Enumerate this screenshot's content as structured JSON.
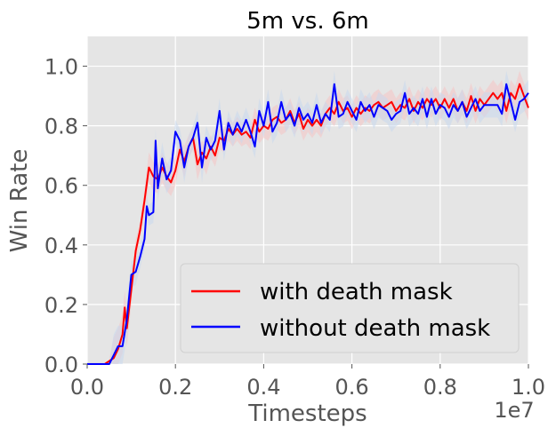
{
  "chart_data": {
    "type": "line",
    "title": "5m vs. 6m",
    "xlabel": "Timesteps",
    "ylabel": "Win Rate",
    "x_offset_label": "1e7",
    "xlim": [
      0.0,
      1.0
    ],
    "ylim": [
      0.0,
      1.1
    ],
    "xticks": [
      "0.0",
      "0.2",
      "0.4",
      "0.6",
      "0.8",
      "1.0"
    ],
    "yticks": [
      "0.0",
      "0.2",
      "0.4",
      "0.6",
      "0.8",
      "1.0"
    ],
    "grid": true,
    "legend_position": "lower-right",
    "series": [
      {
        "name": "with death mask",
        "color": "#ff0000",
        "band_color": "#f5c4c4",
        "points": [
          [
            0.0,
            0.0
          ],
          [
            0.02,
            0.0
          ],
          [
            0.04,
            0.0
          ],
          [
            0.05,
            0.01
          ],
          [
            0.06,
            0.02
          ],
          [
            0.07,
            0.05
          ],
          [
            0.08,
            0.1
          ],
          [
            0.085,
            0.19
          ],
          [
            0.09,
            0.12
          ],
          [
            0.1,
            0.25
          ],
          [
            0.11,
            0.38
          ],
          [
            0.12,
            0.45
          ],
          [
            0.13,
            0.55
          ],
          [
            0.14,
            0.66
          ],
          [
            0.15,
            0.63
          ],
          [
            0.16,
            0.62
          ],
          [
            0.17,
            0.66
          ],
          [
            0.18,
            0.63
          ],
          [
            0.19,
            0.61
          ],
          [
            0.2,
            0.65
          ],
          [
            0.21,
            0.72
          ],
          [
            0.22,
            0.68
          ],
          [
            0.23,
            0.73
          ],
          [
            0.24,
            0.76
          ],
          [
            0.25,
            0.67
          ],
          [
            0.26,
            0.71
          ],
          [
            0.27,
            0.69
          ],
          [
            0.28,
            0.73
          ],
          [
            0.29,
            0.7
          ],
          [
            0.3,
            0.76
          ],
          [
            0.31,
            0.75
          ],
          [
            0.32,
            0.79
          ],
          [
            0.33,
            0.77
          ],
          [
            0.34,
            0.79
          ],
          [
            0.35,
            0.77
          ],
          [
            0.36,
            0.78
          ],
          [
            0.37,
            0.76
          ],
          [
            0.38,
            0.82
          ],
          [
            0.39,
            0.78
          ],
          [
            0.4,
            0.8
          ],
          [
            0.41,
            0.79
          ],
          [
            0.42,
            0.82
          ],
          [
            0.43,
            0.83
          ],
          [
            0.44,
            0.81
          ],
          [
            0.45,
            0.82
          ],
          [
            0.46,
            0.85
          ],
          [
            0.47,
            0.81
          ],
          [
            0.48,
            0.84
          ],
          [
            0.49,
            0.79
          ],
          [
            0.5,
            0.82
          ],
          [
            0.51,
            0.8
          ],
          [
            0.52,
            0.82
          ],
          [
            0.53,
            0.8
          ],
          [
            0.54,
            0.84
          ],
          [
            0.55,
            0.86
          ],
          [
            0.56,
            0.84
          ],
          [
            0.57,
            0.88
          ],
          [
            0.58,
            0.85
          ],
          [
            0.59,
            0.86
          ],
          [
            0.6,
            0.83
          ],
          [
            0.61,
            0.86
          ],
          [
            0.62,
            0.84
          ],
          [
            0.63,
            0.86
          ],
          [
            0.64,
            0.85
          ],
          [
            0.65,
            0.87
          ],
          [
            0.66,
            0.88
          ],
          [
            0.67,
            0.86
          ],
          [
            0.68,
            0.87
          ],
          [
            0.69,
            0.88
          ],
          [
            0.7,
            0.85
          ],
          [
            0.71,
            0.87
          ],
          [
            0.72,
            0.86
          ],
          [
            0.73,
            0.89
          ],
          [
            0.74,
            0.85
          ],
          [
            0.75,
            0.88
          ],
          [
            0.76,
            0.86
          ],
          [
            0.77,
            0.89
          ],
          [
            0.78,
            0.87
          ],
          [
            0.79,
            0.89
          ],
          [
            0.8,
            0.86
          ],
          [
            0.81,
            0.89
          ],
          [
            0.82,
            0.86
          ],
          [
            0.83,
            0.89
          ],
          [
            0.84,
            0.85
          ],
          [
            0.85,
            0.88
          ],
          [
            0.86,
            0.85
          ],
          [
            0.87,
            0.9
          ],
          [
            0.88,
            0.85
          ],
          [
            0.89,
            0.89
          ],
          [
            0.9,
            0.87
          ],
          [
            0.91,
            0.89
          ],
          [
            0.92,
            0.91
          ],
          [
            0.93,
            0.89
          ],
          [
            0.94,
            0.91
          ],
          [
            0.95,
            0.85
          ],
          [
            0.96,
            0.91
          ],
          [
            0.97,
            0.89
          ],
          [
            0.98,
            0.94
          ],
          [
            0.99,
            0.9
          ],
          [
            1.0,
            0.86
          ]
        ]
      },
      {
        "name": "without death mask",
        "color": "#0000ff",
        "band_color": "#c9d9ee",
        "points": [
          [
            0.0,
            0.0
          ],
          [
            0.02,
            0.0
          ],
          [
            0.04,
            0.0
          ],
          [
            0.05,
            0.0
          ],
          [
            0.06,
            0.03
          ],
          [
            0.07,
            0.06
          ],
          [
            0.08,
            0.06
          ],
          [
            0.09,
            0.15
          ],
          [
            0.1,
            0.3
          ],
          [
            0.11,
            0.31
          ],
          [
            0.12,
            0.36
          ],
          [
            0.13,
            0.42
          ],
          [
            0.135,
            0.53
          ],
          [
            0.14,
            0.5
          ],
          [
            0.15,
            0.51
          ],
          [
            0.155,
            0.75
          ],
          [
            0.16,
            0.59
          ],
          [
            0.17,
            0.69
          ],
          [
            0.18,
            0.62
          ],
          [
            0.19,
            0.65
          ],
          [
            0.2,
            0.78
          ],
          [
            0.21,
            0.75
          ],
          [
            0.22,
            0.66
          ],
          [
            0.23,
            0.73
          ],
          [
            0.24,
            0.76
          ],
          [
            0.25,
            0.81
          ],
          [
            0.26,
            0.66
          ],
          [
            0.27,
            0.76
          ],
          [
            0.28,
            0.72
          ],
          [
            0.29,
            0.75
          ],
          [
            0.3,
            0.85
          ],
          [
            0.31,
            0.72
          ],
          [
            0.32,
            0.81
          ],
          [
            0.33,
            0.77
          ],
          [
            0.34,
            0.81
          ],
          [
            0.35,
            0.78
          ],
          [
            0.36,
            0.82
          ],
          [
            0.37,
            0.78
          ],
          [
            0.38,
            0.73
          ],
          [
            0.39,
            0.85
          ],
          [
            0.4,
            0.8
          ],
          [
            0.41,
            0.88
          ],
          [
            0.42,
            0.78
          ],
          [
            0.43,
            0.81
          ],
          [
            0.44,
            0.88
          ],
          [
            0.45,
            0.82
          ],
          [
            0.46,
            0.84
          ],
          [
            0.47,
            0.8
          ],
          [
            0.48,
            0.86
          ],
          [
            0.49,
            0.82
          ],
          [
            0.5,
            0.84
          ],
          [
            0.51,
            0.81
          ],
          [
            0.52,
            0.87
          ],
          [
            0.53,
            0.81
          ],
          [
            0.54,
            0.84
          ],
          [
            0.55,
            0.82
          ],
          [
            0.56,
            0.94
          ],
          [
            0.57,
            0.83
          ],
          [
            0.58,
            0.84
          ],
          [
            0.59,
            0.88
          ],
          [
            0.6,
            0.85
          ],
          [
            0.61,
            0.82
          ],
          [
            0.62,
            0.88
          ],
          [
            0.63,
            0.85
          ],
          [
            0.64,
            0.87
          ],
          [
            0.65,
            0.83
          ],
          [
            0.66,
            0.87
          ],
          [
            0.67,
            0.86
          ],
          [
            0.68,
            0.85
          ],
          [
            0.69,
            0.82
          ],
          [
            0.7,
            0.84
          ],
          [
            0.71,
            0.85
          ],
          [
            0.72,
            0.91
          ],
          [
            0.73,
            0.84
          ],
          [
            0.74,
            0.86
          ],
          [
            0.75,
            0.84
          ],
          [
            0.76,
            0.89
          ],
          [
            0.77,
            0.83
          ],
          [
            0.78,
            0.89
          ],
          [
            0.79,
            0.84
          ],
          [
            0.8,
            0.87
          ],
          [
            0.81,
            0.86
          ],
          [
            0.82,
            0.83
          ],
          [
            0.83,
            0.87
          ],
          [
            0.84,
            0.85
          ],
          [
            0.85,
            0.88
          ],
          [
            0.86,
            0.83
          ],
          [
            0.87,
            0.86
          ],
          [
            0.88,
            0.89
          ],
          [
            0.89,
            0.85
          ],
          [
            0.9,
            0.87
          ],
          [
            0.91,
            0.87
          ],
          [
            0.92,
            0.87
          ],
          [
            0.93,
            0.87
          ],
          [
            0.94,
            0.84
          ],
          [
            0.95,
            0.94
          ],
          [
            0.96,
            0.88
          ],
          [
            0.97,
            0.82
          ],
          [
            0.98,
            0.88
          ],
          [
            0.99,
            0.89
          ],
          [
            1.0,
            0.91
          ]
        ]
      }
    ]
  }
}
